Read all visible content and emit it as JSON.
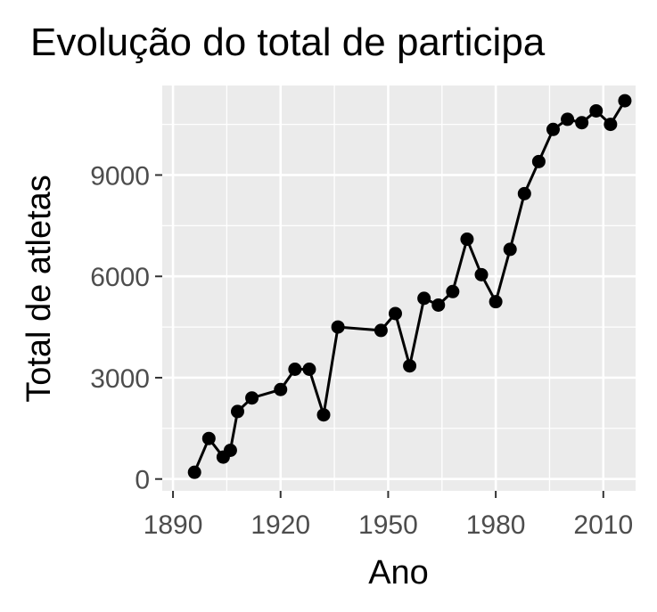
{
  "chart_data": {
    "type": "line",
    "title": "Evolução do total de participa",
    "xlabel": "Ano",
    "ylabel": "Total de atletas",
    "xlim": [
      1887,
      2019
    ],
    "ylim": [
      -350,
      11650
    ],
    "x_ticks": [
      1890,
      1920,
      1950,
      1980,
      2010
    ],
    "y_ticks": [
      0,
      3000,
      6000,
      9000
    ],
    "x_tick_labels": [
      "1890",
      "1920",
      "1950",
      "1980",
      "2010"
    ],
    "y_tick_labels": [
      "0",
      "3000",
      "6000",
      "9000"
    ],
    "grid": true,
    "panel_background": "#ebebeb",
    "line_color": "#000000",
    "series": [
      {
        "x": [
          1896,
          1900,
          1904,
          1906,
          1908,
          1912,
          1920,
          1924,
          1928,
          1932,
          1936,
          1948,
          1952,
          1956,
          1960,
          1964,
          1968,
          1972,
          1976,
          1980,
          1984,
          1988,
          1992,
          1996,
          2000,
          2004,
          2008,
          2012,
          2016
        ],
        "y": [
          200,
          1200,
          650,
          850,
          2000,
          2400,
          2650,
          3250,
          3250,
          1900,
          4500,
          4400,
          4900,
          3350,
          5350,
          5150,
          5550,
          7100,
          6050,
          5250,
          6800,
          8450,
          9400,
          10350,
          10650,
          10550,
          10900,
          10500,
          11200
        ]
      }
    ]
  }
}
